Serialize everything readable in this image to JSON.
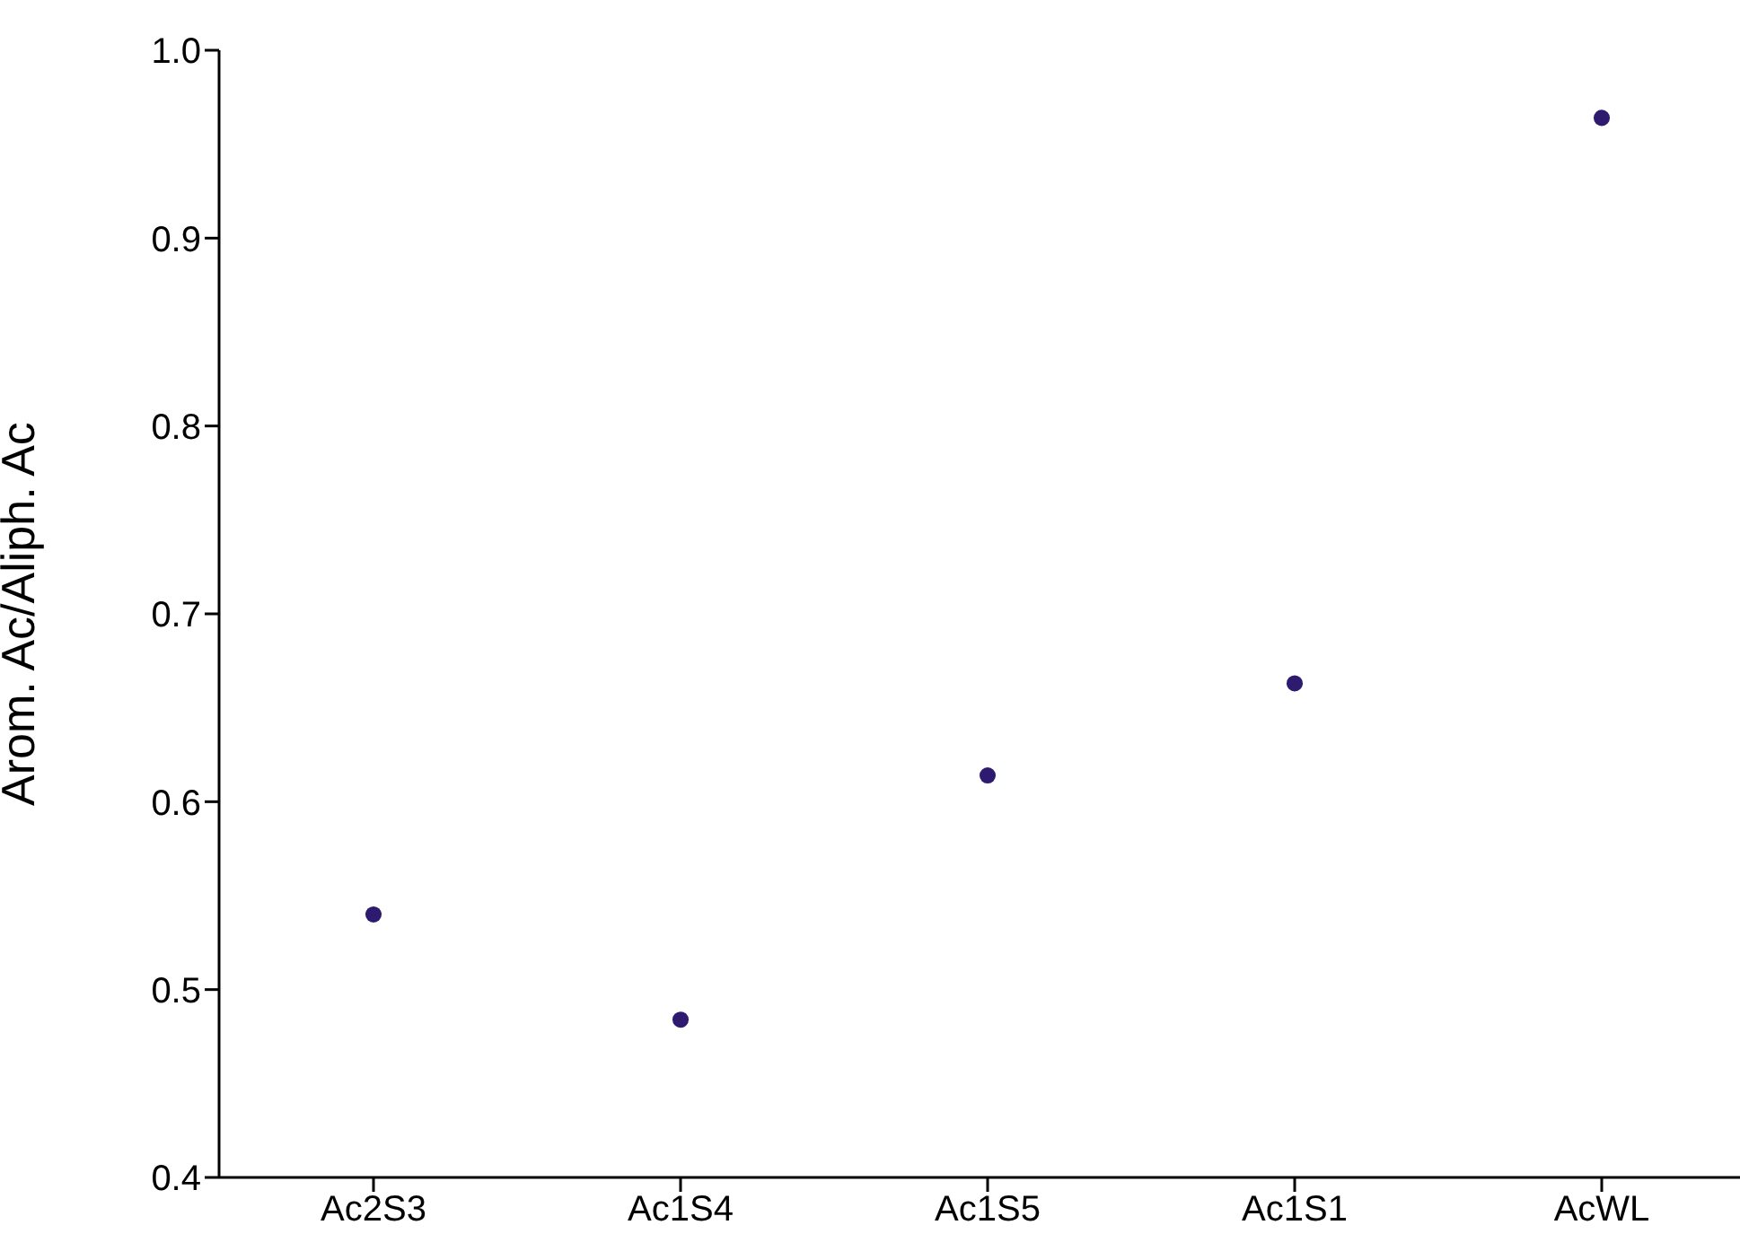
{
  "chart_data": {
    "type": "scatter",
    "ylabel": "Arom. Ac/Aliph. Ac",
    "categories": [
      "Ac2S3",
      "Ac1S4",
      "Ac1S5",
      "Ac1S1",
      "AcWL"
    ],
    "values": [
      0.54,
      0.484,
      0.614,
      0.663,
      0.964
    ],
    "color": "#2e1a6e",
    "marker": "circle",
    "ylim": [
      0.4,
      1.0
    ],
    "yticks": [
      0.4,
      0.5,
      0.6,
      0.7,
      0.8,
      0.9,
      {
        "value": 1,
        "label": "1.0"
      }
    ]
  }
}
